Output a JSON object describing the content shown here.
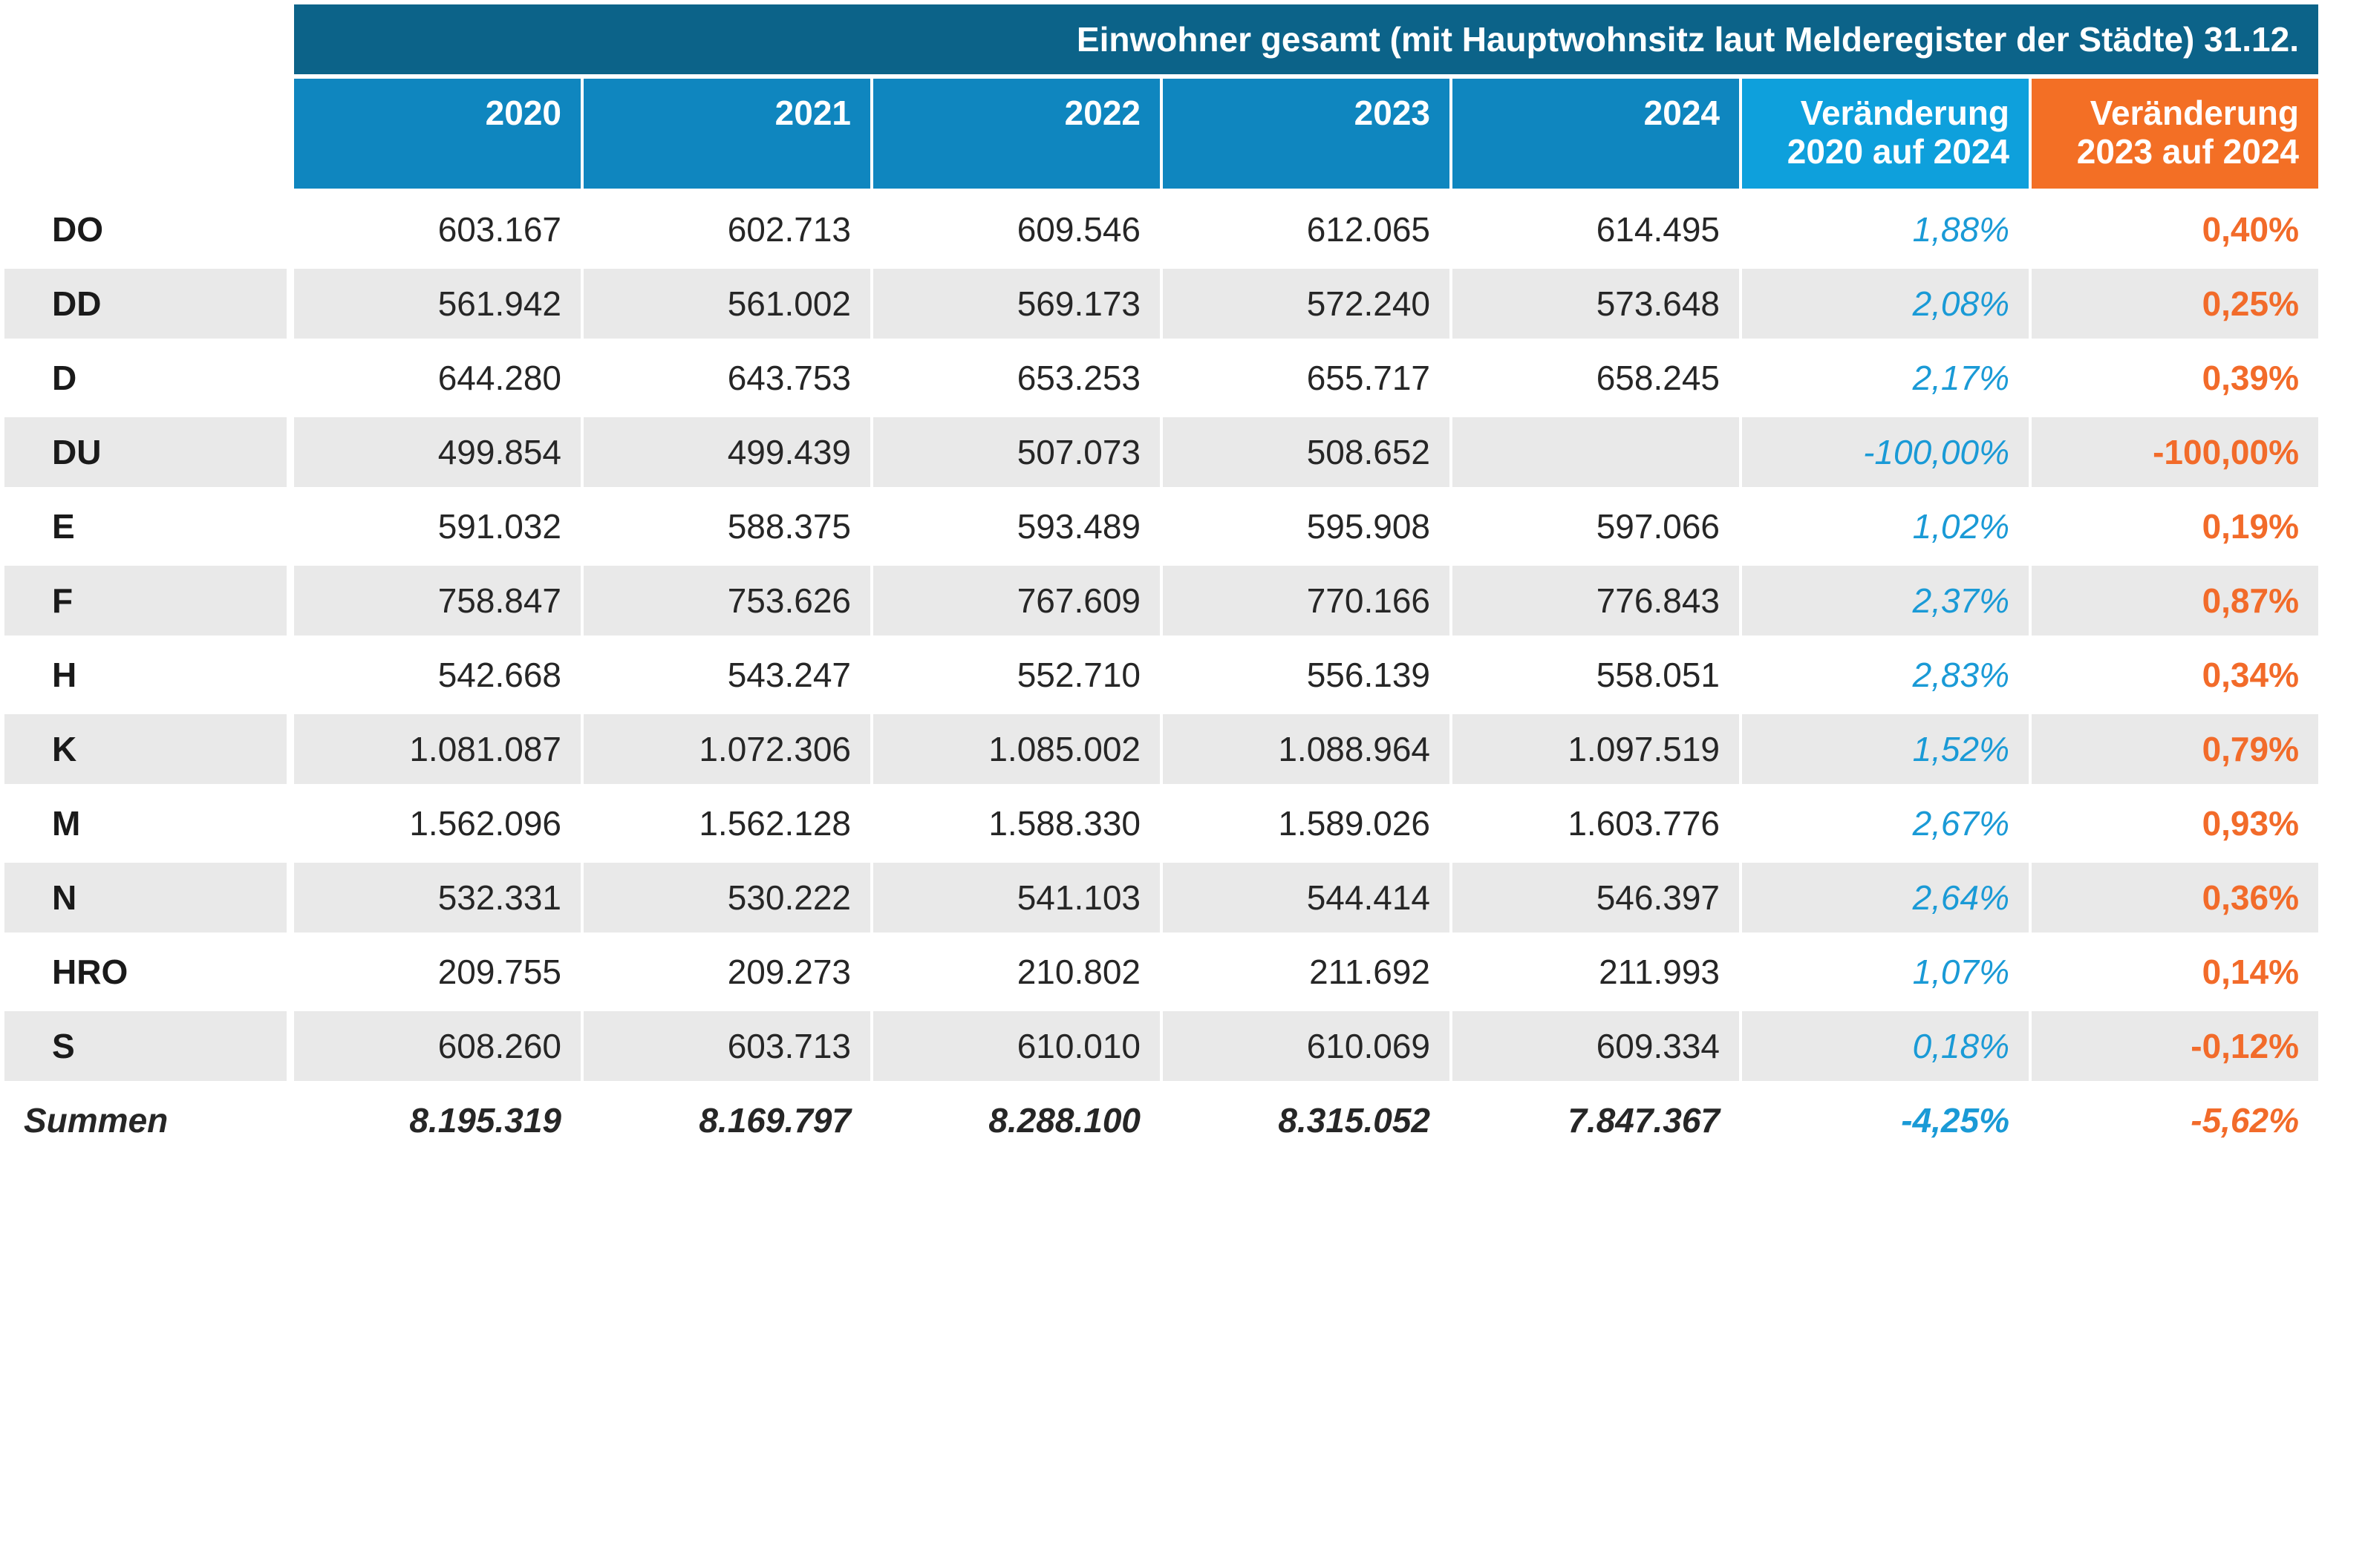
{
  "chart_data": {
    "type": "table",
    "title": "Einwohner gesamt (mit Hauptwohnsitz laut Melderegister der Städte) 31.12.",
    "columns": [
      "2020",
      "2021",
      "2022",
      "2023",
      "2024",
      "Veränderung 2020 auf 2024",
      "Veränderung 2023 auf 2024"
    ],
    "column_lines": [
      [
        "2020"
      ],
      [
        "2021"
      ],
      [
        "2022"
      ],
      [
        "2023"
      ],
      [
        "2024"
      ],
      [
        "Veränderung",
        "2020 auf 2024"
      ],
      [
        "Veränderung",
        "2023 auf 2024"
      ]
    ],
    "rows": [
      {
        "label": "DO",
        "values": [
          "603.167",
          "602.713",
          "609.546",
          "612.065",
          "614.495",
          "1,88%",
          "0,40%"
        ]
      },
      {
        "label": "DD",
        "values": [
          "561.942",
          "561.002",
          "569.173",
          "572.240",
          "573.648",
          "2,08%",
          "0,25%"
        ]
      },
      {
        "label": "D",
        "values": [
          "644.280",
          "643.753",
          "653.253",
          "655.717",
          "658.245",
          "2,17%",
          "0,39%"
        ]
      },
      {
        "label": "DU",
        "values": [
          "499.854",
          "499.439",
          "507.073",
          "508.652",
          "",
          "-100,00%",
          "-100,00%"
        ]
      },
      {
        "label": "E",
        "values": [
          "591.032",
          "588.375",
          "593.489",
          "595.908",
          "597.066",
          "1,02%",
          "0,19%"
        ]
      },
      {
        "label": "F",
        "values": [
          "758.847",
          "753.626",
          "767.609",
          "770.166",
          "776.843",
          "2,37%",
          "0,87%"
        ]
      },
      {
        "label": "H",
        "values": [
          "542.668",
          "543.247",
          "552.710",
          "556.139",
          "558.051",
          "2,83%",
          "0,34%"
        ]
      },
      {
        "label": "K",
        "values": [
          "1.081.087",
          "1.072.306",
          "1.085.002",
          "1.088.964",
          "1.097.519",
          "1,52%",
          "0,79%"
        ]
      },
      {
        "label": "M",
        "values": [
          "1.562.096",
          "1.562.128",
          "1.588.330",
          "1.589.026",
          "1.603.776",
          "2,67%",
          "0,93%"
        ]
      },
      {
        "label": "N",
        "values": [
          "532.331",
          "530.222",
          "541.103",
          "544.414",
          "546.397",
          "2,64%",
          "0,36%"
        ]
      },
      {
        "label": "HRO",
        "values": [
          "209.755",
          "209.273",
          "210.802",
          "211.692",
          "211.993",
          "1,07%",
          "0,14%"
        ]
      },
      {
        "label": "S",
        "values": [
          "608.260",
          "603.713",
          "610.010",
          "610.069",
          "609.334",
          "0,18%",
          "-0,12%"
        ]
      }
    ],
    "totals": {
      "label": "Summen",
      "values": [
        "8.195.319",
        "8.169.797",
        "8.288.100",
        "8.315.052",
        "7.847.367",
        "-4,25%",
        "-5,62%"
      ]
    },
    "colors": {
      "title_bar": "#0c6389",
      "header_year": "#0f86bf",
      "header_change_blue": "#0ea0dc",
      "header_change_orange": "#f36f25",
      "text_blue": "#1a9ad6",
      "text_orange": "#f26b2a",
      "stripe": "#e9e9e9"
    }
  }
}
